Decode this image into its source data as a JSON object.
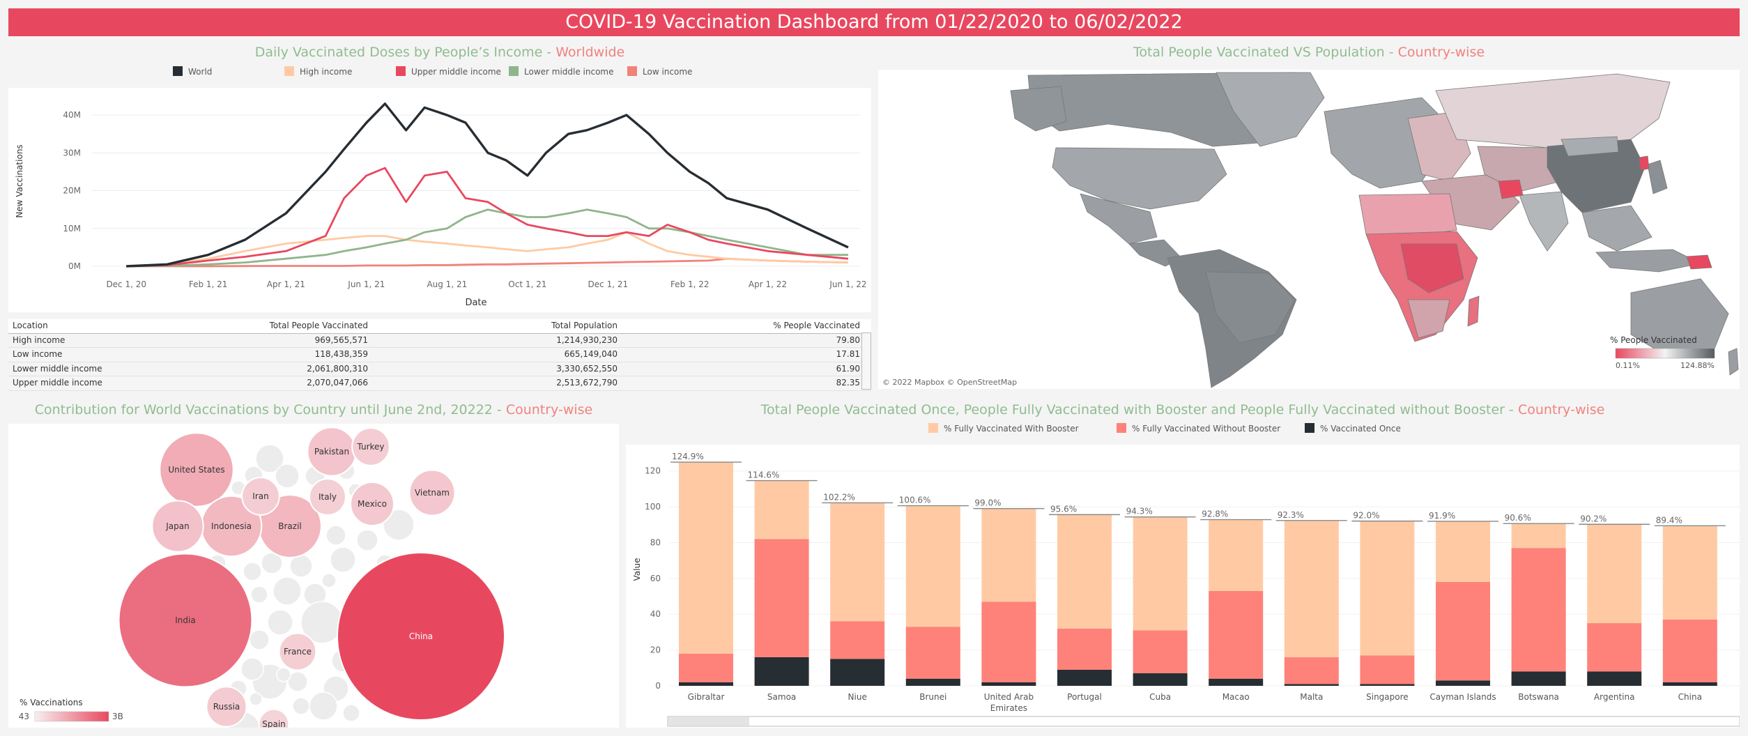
{
  "dashboard": {
    "title": "COVID-19 Vaccination Dashboard from 01/22/2020 to 06/02/2022"
  },
  "line_panel": {
    "title_main": "Daily Vaccinated Doses by People’s Income - ",
    "title_accent": "Worldwide",
    "legend": [
      {
        "label": "World",
        "color": "#262d33"
      },
      {
        "label": "High income",
        "color": "#ffcaa3"
      },
      {
        "label": "Upper middle income",
        "color": "#e8485f"
      },
      {
        "label": "Lower middle income",
        "color": "#8fb58a"
      },
      {
        "label": "Low income",
        "color": "#f18279"
      }
    ]
  },
  "income_table": {
    "headers": [
      "Location",
      "Total People Vaccinated",
      "Total Population",
      "% People Vaccinated"
    ],
    "rows": [
      [
        "High income",
        "969,565,571",
        "1,214,930,230",
        "79.80"
      ],
      [
        "Low income",
        "118,438,359",
        "665,149,040",
        "17.81"
      ],
      [
        "Lower middle income",
        "2,061,800,310",
        "3,330,652,550",
        "61.90"
      ],
      [
        "Upper middle income",
        "2,070,047,066",
        "2,513,672,790",
        "82.35"
      ]
    ]
  },
  "map_panel": {
    "title_main": "Total People Vaccinated VS Population - ",
    "title_accent": "Country-wise",
    "legend_title": "% People Vaccinated",
    "legend_min": "0.11%",
    "legend_max": "124.88%",
    "credit": "© 2022 Mapbox © OpenStreetMap",
    "colors": {
      "high": "#555a60",
      "low": "#e8485f"
    }
  },
  "bubble_panel": {
    "title_main": "Contribution for World Vaccinations by Country until June 2nd, 20222 - ",
    "title_accent": "Country-wise",
    "legend_title": "% Vaccinations",
    "legend_min": "43",
    "legend_max": "3B"
  },
  "bar_panel": {
    "title_main": "Total People Vaccinated Once, People Fully Vaccinated with Booster and People Fully Vaccinated without Booster - ",
    "title_accent": "Country-wise",
    "legend": [
      {
        "label": "% Fully Vaccinated With Booster",
        "color": "#ffcaa3"
      },
      {
        "label": "% Fully Vaccinated Without Booster",
        "color": "#fe8279"
      },
      {
        "label": "% Vaccinated Once",
        "color": "#262d33"
      }
    ]
  },
  "chart_data": [
    {
      "type": "line",
      "title": "Daily Vaccinated Doses by People’s Income - Worldwide",
      "xlabel": "Date",
      "ylabel": "New Vaccinations",
      "ylim": [
        0,
        45000000
      ],
      "yticks": [
        0,
        10000000,
        20000000,
        30000000,
        40000000
      ],
      "ytick_labels": [
        "0M",
        "10M",
        "20M",
        "30M",
        "40M"
      ],
      "xtick_labels": [
        "Dec 1, 20",
        "Feb 1, 21",
        "Apr 1, 21",
        "Jun 1, 21",
        "Aug 1, 21",
        "Oct 1, 21",
        "Dec 1, 21",
        "Feb 1, 22",
        "Apr 1, 22",
        "Jun 1, 22"
      ],
      "x": [
        "2020-12-01",
        "2021-01-01",
        "2021-02-01",
        "2021-03-01",
        "2021-04-01",
        "2021-05-01",
        "2021-05-15",
        "2021-06-01",
        "2021-06-15",
        "2021-07-01",
        "2021-07-15",
        "2021-08-01",
        "2021-08-15",
        "2021-09-01",
        "2021-09-15",
        "2021-10-01",
        "2021-10-15",
        "2021-11-01",
        "2021-11-15",
        "2021-12-01",
        "2021-12-15",
        "2022-01-01",
        "2022-01-15",
        "2022-02-01",
        "2022-02-15",
        "2022-03-01",
        "2022-04-01",
        "2022-05-01",
        "2022-06-01"
      ],
      "series": [
        {
          "name": "World",
          "values": [
            0,
            500000,
            3000000,
            7000000,
            14000000,
            25000000,
            31000000,
            38000000,
            43000000,
            36000000,
            42000000,
            40000000,
            38000000,
            30000000,
            28000000,
            24000000,
            30000000,
            35000000,
            36000000,
            38000000,
            40000000,
            35000000,
            30000000,
            25000000,
            22000000,
            18000000,
            15000000,
            10000000,
            5000000
          ]
        },
        {
          "name": "High income",
          "values": [
            0,
            500000,
            2000000,
            4000000,
            6000000,
            7000000,
            7500000,
            8000000,
            8000000,
            7000000,
            6500000,
            6000000,
            5500000,
            5000000,
            4500000,
            4000000,
            4500000,
            5000000,
            6000000,
            7000000,
            9000000,
            6000000,
            4000000,
            3000000,
            2500000,
            2000000,
            1500000,
            1200000,
            1000000
          ]
        },
        {
          "name": "Upper middle income",
          "values": [
            0,
            300000,
            1500000,
            2500000,
            4000000,
            8000000,
            18000000,
            24000000,
            26000000,
            17000000,
            24000000,
            25000000,
            18000000,
            17000000,
            14000000,
            11000000,
            10000000,
            9000000,
            8000000,
            8000000,
            9000000,
            8000000,
            11000000,
            9000000,
            7000000,
            6000000,
            4000000,
            3000000,
            2000000
          ]
        },
        {
          "name": "Lower middle income",
          "values": [
            0,
            100000,
            500000,
            1000000,
            2000000,
            3000000,
            4000000,
            5000000,
            6000000,
            7000000,
            9000000,
            10000000,
            13000000,
            15000000,
            14000000,
            13000000,
            13000000,
            14000000,
            15000000,
            14000000,
            13000000,
            10000000,
            10000000,
            9000000,
            8000000,
            7000000,
            5000000,
            3000000,
            3000000
          ]
        },
        {
          "name": "Low income",
          "values": [
            0,
            0,
            0,
            50000,
            100000,
            100000,
            100000,
            200000,
            200000,
            200000,
            300000,
            300000,
            400000,
            500000,
            500000,
            600000,
            700000,
            800000,
            900000,
            1000000,
            1100000,
            1200000,
            1300000,
            1400000,
            1500000,
            2000000,
            1500000,
            1200000,
            1000000
          ]
        }
      ]
    },
    {
      "type": "table",
      "title": "",
      "columns": [
        "Location",
        "Total People Vaccinated",
        "Total Population",
        "% People Vaccinated"
      ],
      "rows": [
        [
          "High income",
          969565571,
          1214930230,
          79.8
        ],
        [
          "Low income",
          118438359,
          665149040,
          17.81
        ],
        [
          "Lower middle income",
          2061800310,
          3330652550,
          61.9
        ],
        [
          "Upper middle income",
          2070047066,
          2513672790,
          82.35
        ]
      ]
    },
    {
      "type": "heatmap",
      "title": "Total People Vaccinated VS Population - Country-wise",
      "legend_title": "% People Vaccinated",
      "range": [
        0.11,
        124.88
      ]
    },
    {
      "type": "scatter",
      "title": "Contribution for World Vaccinations by Country until June 2nd, 20222 - Country-wise",
      "legend_title": "% Vaccinations",
      "range_labels": [
        "43",
        "3B"
      ],
      "bubbles": [
        {
          "label": "China",
          "value": 3000000000
        },
        {
          "label": "India",
          "value": 1900000000
        },
        {
          "label": "United States",
          "value": 580000000
        },
        {
          "label": "Brazil",
          "value": 420000000
        },
        {
          "label": "Indonesia",
          "value": 390000000
        },
        {
          "label": "Japan",
          "value": 280000000
        },
        {
          "label": "Pakistan",
          "value": 250000000
        },
        {
          "label": "Vietnam",
          "value": 220000000
        },
        {
          "label": "Mexico",
          "value": 200000000
        },
        {
          "label": "Russia",
          "value": 170000000
        },
        {
          "label": "Turkey",
          "value": 150000000
        },
        {
          "label": "Iran",
          "value": 150000000
        },
        {
          "label": "Italy",
          "value": 140000000
        },
        {
          "label": "France",
          "value": 145000000
        },
        {
          "label": "Spain",
          "value": 95000000
        }
      ]
    },
    {
      "type": "bar",
      "title": "Total People Vaccinated Once, People Fully Vaccinated with Booster and People Fully Vaccinated without Booster - Country-wise",
      "xlabel": "",
      "ylabel": "Value",
      "ylim": [
        0,
        130
      ],
      "yticks": [
        0,
        20,
        40,
        60,
        80,
        100,
        120
      ],
      "categories": [
        "Gibraltar",
        "Samoa",
        "Niue",
        "Brunei",
        "United Arab Emirates",
        "Portugal",
        "Cuba",
        "Macao",
        "Malta",
        "Singapore",
        "Cayman Islands",
        "Botswana",
        "Argentina",
        "China"
      ],
      "total_labels": [
        "124.9%",
        "114.6%",
        "102.2%",
        "100.6%",
        "99.0%",
        "95.6%",
        "94.3%",
        "92.8%",
        "92.3%",
        "92.0%",
        "91.9%",
        "90.6%",
        "90.2%",
        "89.4%"
      ],
      "totals": [
        124.9,
        114.6,
        102.2,
        100.6,
        99.0,
        95.6,
        94.3,
        92.8,
        92.3,
        92.0,
        91.9,
        90.6,
        90.2,
        89.4
      ],
      "series": [
        {
          "name": "% Vaccinated Once",
          "values": [
            2,
            16,
            15,
            4,
            2,
            9,
            7,
            4,
            1,
            1,
            3,
            8,
            8,
            2
          ]
        },
        {
          "name": "% Fully Vaccinated Without Booster",
          "values": [
            16,
            66,
            21,
            29,
            45,
            23,
            24,
            49,
            15,
            16,
            55,
            69,
            27,
            35
          ]
        },
        {
          "name": "% Fully Vaccinated With Booster",
          "values": [
            106.9,
            32.6,
            66.2,
            67.6,
            52.0,
            63.6,
            63.3,
            39.8,
            76.3,
            75.0,
            33.9,
            13.6,
            55.2,
            52.4
          ]
        }
      ]
    }
  ]
}
